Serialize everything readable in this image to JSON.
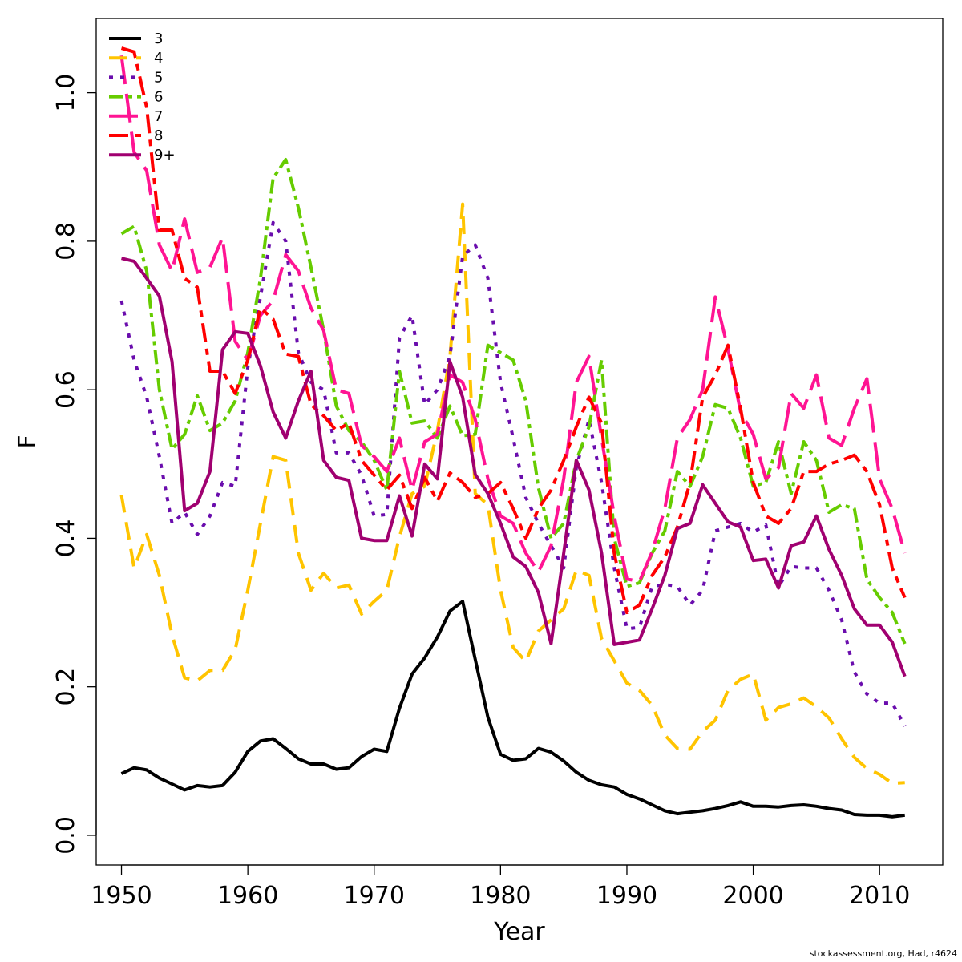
{
  "chart_data": {
    "type": "line",
    "xlabel": "Year",
    "ylabel": "F",
    "xlim": [
      1948,
      2015
    ],
    "ylim": [
      -0.04,
      1.1
    ],
    "xticks": [
      1950,
      1960,
      1970,
      1980,
      1990,
      2000,
      2010
    ],
    "yticks": [
      0.0,
      0.2,
      0.4,
      0.6,
      0.8,
      1.0
    ],
    "xtick_labels": [
      "1950",
      "1960",
      "1970",
      "1980",
      "1990",
      "2000",
      "2010"
    ],
    "ytick_labels": [
      "0.0",
      "0.2",
      "0.4",
      "0.6",
      "0.8",
      "1.0"
    ],
    "legend_position": "top-left",
    "x": [
      1950,
      1951,
      1952,
      1953,
      1954,
      1955,
      1956,
      1957,
      1958,
      1959,
      1960,
      1961,
      1962,
      1963,
      1964,
      1965,
      1966,
      1967,
      1968,
      1969,
      1970,
      1971,
      1972,
      1973,
      1974,
      1975,
      1976,
      1977,
      1978,
      1979,
      1980,
      1981,
      1982,
      1983,
      1984,
      1985,
      1986,
      1987,
      1988,
      1989,
      1990,
      1991,
      1992,
      1993,
      1994,
      1995,
      1996,
      1997,
      1998,
      1999,
      2000,
      2001,
      2002,
      2003,
      2004,
      2005,
      2006,
      2007,
      2008,
      2009,
      2010,
      2011,
      2012
    ],
    "series": [
      {
        "name": "3",
        "color": "#000000",
        "dash": "",
        "values": [
          0.083,
          0.091,
          0.088,
          0.077,
          0.069,
          0.061,
          0.067,
          0.065,
          0.067,
          0.085,
          0.113,
          0.127,
          0.13,
          0.117,
          0.103,
          0.096,
          0.096,
          0.089,
          0.091,
          0.106,
          0.116,
          0.113,
          0.171,
          0.217,
          0.239,
          0.267,
          0.302,
          0.315,
          0.237,
          0.159,
          0.109,
          0.101,
          0.103,
          0.117,
          0.112,
          0.1,
          0.085,
          0.074,
          0.068,
          0.065,
          0.055,
          0.049,
          0.041,
          0.033,
          0.029,
          0.031,
          0.033,
          0.036,
          0.04,
          0.045,
          0.039,
          0.039,
          0.038,
          0.04,
          0.041,
          0.039,
          0.036,
          0.034,
          0.028,
          0.027,
          0.027,
          0.025,
          0.027
        ]
      },
      {
        "name": "4",
        "color": "#ffc400",
        "dash": "22,12",
        "values": [
          0.458,
          0.36,
          0.405,
          0.35,
          0.27,
          0.212,
          0.208,
          0.222,
          0.222,
          0.25,
          0.33,
          0.42,
          0.51,
          0.505,
          0.38,
          0.33,
          0.353,
          0.333,
          0.337,
          0.298,
          0.315,
          0.33,
          0.402,
          0.46,
          0.47,
          0.545,
          0.645,
          0.85,
          0.46,
          0.445,
          0.33,
          0.253,
          0.234,
          0.275,
          0.29,
          0.305,
          0.357,
          0.35,
          0.265,
          0.235,
          0.205,
          0.195,
          0.175,
          0.135,
          0.117,
          0.116,
          0.14,
          0.155,
          0.195,
          0.21,
          0.217,
          0.155,
          0.172,
          0.177,
          0.185,
          0.173,
          0.158,
          0.13,
          0.105,
          0.09,
          0.082,
          0.07,
          0.071
        ]
      },
      {
        "name": "5",
        "color": "#6a0dad",
        "dash": "5,9",
        "values": [
          0.72,
          0.64,
          0.59,
          0.51,
          0.42,
          0.435,
          0.405,
          0.43,
          0.475,
          0.47,
          0.63,
          0.725,
          0.825,
          0.8,
          0.65,
          0.61,
          0.6,
          0.515,
          0.515,
          0.485,
          0.43,
          0.432,
          0.67,
          0.7,
          0.58,
          0.6,
          0.645,
          0.78,
          0.795,
          0.75,
          0.61,
          0.535,
          0.455,
          0.42,
          0.39,
          0.36,
          0.495,
          0.56,
          0.475,
          0.36,
          0.278,
          0.28,
          0.335,
          0.338,
          0.335,
          0.31,
          0.33,
          0.41,
          0.415,
          0.42,
          0.408,
          0.418,
          0.335,
          0.362,
          0.36,
          0.36,
          0.33,
          0.29,
          0.22,
          0.19,
          0.178,
          0.178,
          0.147
        ]
      },
      {
        "name": "6",
        "color": "#66cc00",
        "dash": "18,6,5,6",
        "values": [
          0.81,
          0.82,
          0.76,
          0.6,
          0.52,
          0.54,
          0.592,
          0.545,
          0.555,
          0.585,
          0.65,
          0.75,
          0.885,
          0.91,
          0.845,
          0.765,
          0.68,
          0.578,
          0.545,
          0.53,
          0.505,
          0.465,
          0.625,
          0.555,
          0.558,
          0.535,
          0.578,
          0.538,
          0.54,
          0.66,
          0.65,
          0.64,
          0.585,
          0.468,
          0.4,
          0.42,
          0.505,
          0.55,
          0.64,
          0.4,
          0.335,
          0.34,
          0.38,
          0.41,
          0.49,
          0.47,
          0.51,
          0.58,
          0.575,
          0.535,
          0.47,
          0.475,
          0.53,
          0.46,
          0.53,
          0.505,
          0.435,
          0.445,
          0.44,
          0.345,
          0.32,
          0.3,
          0.258
        ]
      },
      {
        "name": "7",
        "color": "#ff1493",
        "dash": "36,12",
        "values": [
          1.05,
          0.92,
          0.895,
          0.795,
          0.76,
          0.83,
          0.758,
          0.765,
          0.805,
          0.665,
          0.64,
          0.7,
          0.72,
          0.782,
          0.76,
          0.71,
          0.68,
          0.6,
          0.595,
          0.525,
          0.51,
          0.49,
          0.535,
          0.465,
          0.53,
          0.54,
          0.62,
          0.61,
          0.56,
          0.48,
          0.43,
          0.42,
          0.38,
          0.355,
          0.39,
          0.48,
          0.61,
          0.645,
          0.535,
          0.43,
          0.345,
          0.342,
          0.382,
          0.44,
          0.535,
          0.56,
          0.6,
          0.725,
          0.655,
          0.57,
          0.54,
          0.48,
          0.495,
          0.595,
          0.575,
          0.62,
          0.535,
          0.525,
          0.575,
          0.615,
          0.48,
          0.44,
          0.38
        ]
      },
      {
        "name": "8",
        "color": "#ff0000",
        "dash": "24,8,8,8",
        "values": [
          1.06,
          1.055,
          0.98,
          0.815,
          0.815,
          0.75,
          0.738,
          0.625,
          0.625,
          0.595,
          0.64,
          0.71,
          0.695,
          0.648,
          0.645,
          0.58,
          0.565,
          0.545,
          0.555,
          0.505,
          0.485,
          0.465,
          0.485,
          0.44,
          0.482,
          0.45,
          0.488,
          0.475,
          0.455,
          0.46,
          0.475,
          0.44,
          0.4,
          0.44,
          0.465,
          0.505,
          0.55,
          0.59,
          0.555,
          0.38,
          0.3,
          0.31,
          0.35,
          0.375,
          0.415,
          0.475,
          0.59,
          0.62,
          0.66,
          0.575,
          0.475,
          0.43,
          0.42,
          0.44,
          0.49,
          0.49,
          0.5,
          0.505,
          0.512,
          0.49,
          0.445,
          0.36,
          0.32
        ]
      },
      {
        "name": "9+",
        "color": "#a00070",
        "dash": "",
        "values": [
          0.777,
          0.773,
          0.75,
          0.726,
          0.638,
          0.437,
          0.447,
          0.49,
          0.654,
          0.678,
          0.676,
          0.632,
          0.57,
          0.535,
          0.585,
          0.625,
          0.505,
          0.482,
          0.478,
          0.4,
          0.397,
          0.397,
          0.457,
          0.403,
          0.5,
          0.48,
          0.638,
          0.59,
          0.486,
          0.46,
          0.42,
          0.375,
          0.362,
          0.327,
          0.258,
          0.38,
          0.505,
          0.465,
          0.38,
          0.257,
          0.26,
          0.263,
          0.305,
          0.35,
          0.413,
          0.42,
          0.472,
          0.447,
          0.422,
          0.415,
          0.37,
          0.372,
          0.333,
          0.39,
          0.395,
          0.43,
          0.385,
          0.35,
          0.305,
          0.283,
          0.283,
          0.26,
          0.214
        ]
      }
    ]
  },
  "credit": "stockassessment.org, Had, r4624"
}
